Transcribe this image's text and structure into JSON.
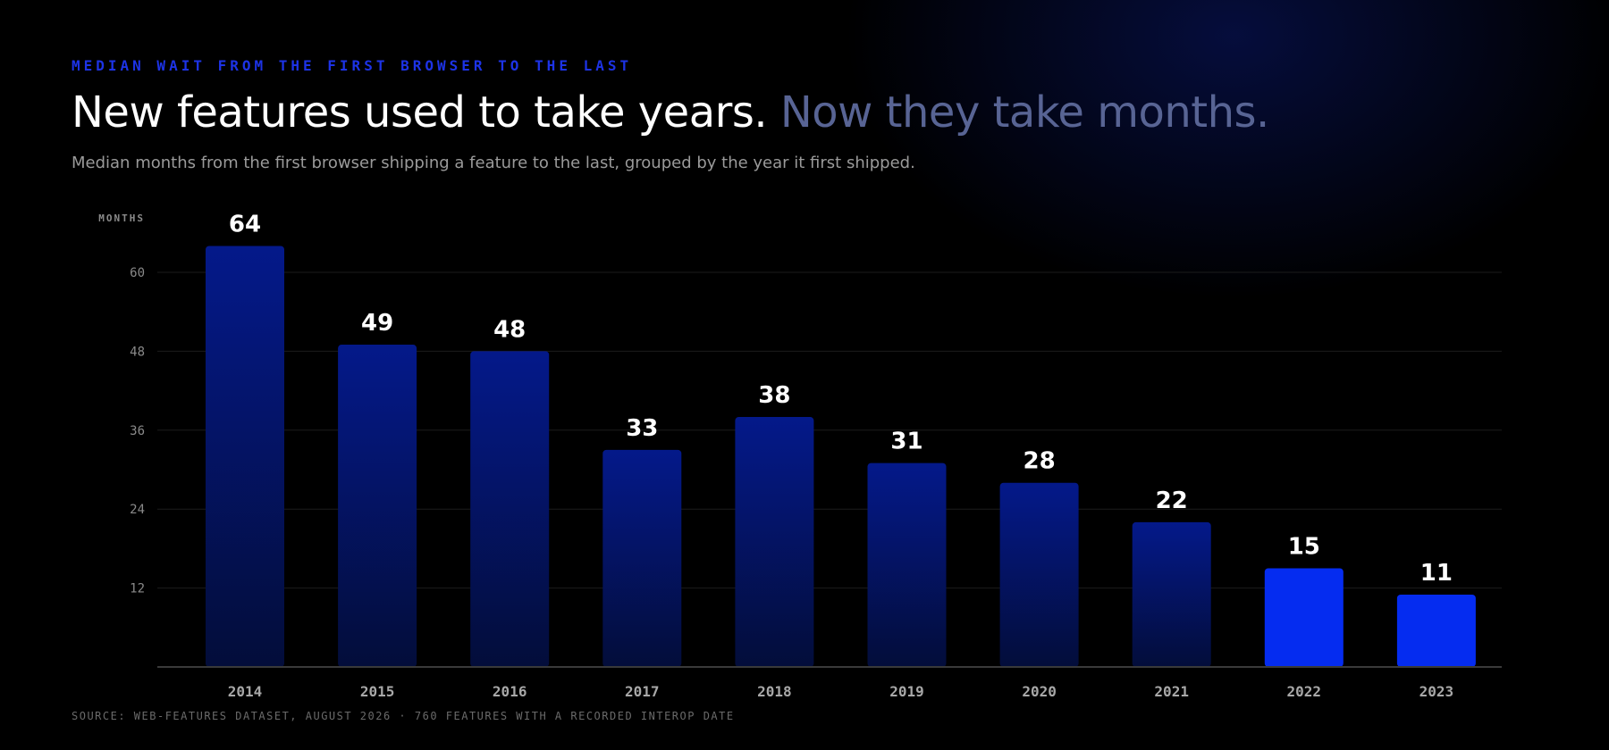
{
  "header": {
    "eyebrow": "MEDIAN WAIT FROM THE FIRST BROWSER TO THE LAST",
    "headline_main": "New features used to take years.",
    "headline_accent": "Now they take months.",
    "subtitle": "Median months from the first browser shipping a feature to the last, grouped by the year it first shipped."
  },
  "footer": {
    "source": "SOURCE: WEB-FEATURES DATASET, AUGUST 2026 · 760 FEATURES WITH A RECORDED INTEROP DATE"
  },
  "colors": {
    "bar_gradient_top": "#04198a",
    "bar_gradient_bottom": "#030d3a",
    "bar_highlight": "#052cf0",
    "eyebrow": "#1d33e6",
    "headline_accent": "#586494"
  },
  "chart_data": {
    "type": "bar",
    "categories": [
      "2014",
      "2015",
      "2016",
      "2017",
      "2018",
      "2019",
      "2020",
      "2021",
      "2022",
      "2023"
    ],
    "values": [
      64,
      49,
      48,
      33,
      38,
      31,
      28,
      22,
      15,
      11
    ],
    "highlighted_categories": [
      "2022",
      "2023"
    ],
    "ylabel": "MONTHS",
    "xlabel": "",
    "yticks": [
      12,
      24,
      36,
      48,
      60
    ],
    "ylim": [
      0,
      60
    ],
    "grid": true,
    "legend": "none"
  }
}
